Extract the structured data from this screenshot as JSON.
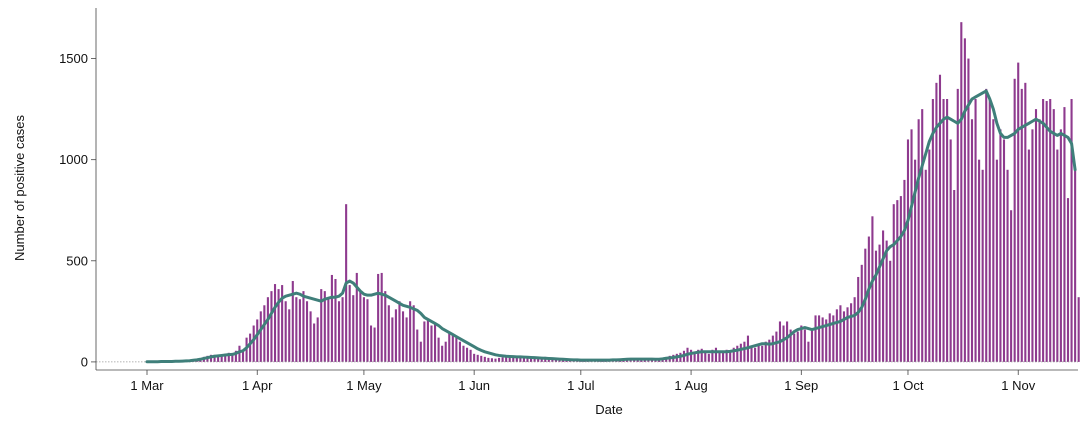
{
  "chart_data": {
    "type": "bar",
    "title": "",
    "xlabel": "Date",
    "ylabel": "Number of positive cases",
    "ylim": [
      -40,
      1750
    ],
    "grid": false,
    "x_ticks": [
      {
        "label": "1 Mar",
        "day": 0
      },
      {
        "label": "1 Apr",
        "day": 31
      },
      {
        "label": "1 May",
        "day": 61
      },
      {
        "label": "1 Jun",
        "day": 92
      },
      {
        "label": "1 Jul",
        "day": 122
      },
      {
        "label": "1 Aug",
        "day": 153
      },
      {
        "label": "1 Sep",
        "day": 184
      },
      {
        "label": "1 Oct",
        "day": 214
      },
      {
        "label": "1 Nov",
        "day": 245
      }
    ],
    "y_ticks": [
      0,
      500,
      1000,
      1500
    ],
    "series": [
      {
        "kind": "bar",
        "color": "#8e3a8e",
        "values": [
          0,
          0,
          0,
          0,
          1,
          1,
          2,
          2,
          3,
          3,
          4,
          5,
          8,
          10,
          12,
          18,
          25,
          30,
          35,
          35,
          28,
          32,
          40,
          45,
          38,
          55,
          80,
          60,
          120,
          140,
          180,
          210,
          250,
          280,
          320,
          350,
          385,
          360,
          380,
          300,
          260,
          400,
          320,
          310,
          350,
          300,
          250,
          190,
          220,
          360,
          350,
          320,
          430,
          410,
          300,
          320,
          780,
          380,
          330,
          440,
          350,
          320,
          310,
          180,
          170,
          435,
          440,
          350,
          280,
          220,
          260,
          300,
          250,
          220,
          300,
          280,
          160,
          100,
          200,
          210,
          180,
          190,
          120,
          80,
          100,
          150,
          140,
          120,
          100,
          80,
          70,
          60,
          40,
          35,
          30,
          25,
          20,
          18,
          16,
          20,
          22,
          25,
          28,
          30,
          30,
          28,
          25,
          22,
          20,
          18,
          20,
          22,
          25,
          20,
          18,
          15,
          12,
          10,
          10,
          8,
          9,
          10,
          9,
          8,
          7,
          8,
          9,
          10,
          8,
          9,
          10,
          12,
          14,
          16,
          18,
          15,
          12,
          10,
          12,
          14,
          16,
          18,
          14,
          12,
          10,
          20,
          22,
          30,
          35,
          40,
          45,
          55,
          70,
          60,
          50,
          60,
          65,
          50,
          40,
          60,
          70,
          50,
          50,
          60,
          50,
          70,
          80,
          90,
          100,
          130,
          80,
          70,
          90,
          80,
          100,
          110,
          130,
          150,
          200,
          180,
          200,
          160,
          140,
          150,
          180,
          160,
          100,
          160,
          230,
          230,
          220,
          210,
          240,
          230,
          260,
          280,
          250,
          270,
          290,
          320,
          420,
          480,
          560,
          620,
          720,
          550,
          580,
          650,
          600,
          500,
          780,
          800,
          820,
          900,
          1100,
          1150,
          1000,
          1200,
          1250,
          950,
          1050,
          1300,
          1380,
          1420,
          1300,
          1300,
          1100,
          850,
          1350,
          1680,
          1600,
          1500,
          1200,
          1300,
          1000,
          950,
          1350,
          1300,
          1200,
          1000,
          1150,
          1100,
          950,
          750,
          1400,
          1480,
          1350,
          1380,
          1050,
          1150,
          1250,
          1200,
          1300,
          1290,
          1300,
          1250,
          1050,
          1150,
          1260,
          810,
          1300,
          950,
          320
        ]
      },
      {
        "kind": "line",
        "color": "#3f7f7a",
        "values": [
          1,
          1,
          1,
          1,
          2,
          2,
          2,
          2,
          3,
          3,
          4,
          5,
          6,
          8,
          10,
          13,
          17,
          21,
          25,
          28,
          30,
          32,
          34,
          36,
          37,
          42,
          50,
          55,
          70,
          90,
          110,
          135,
          160,
          185,
          210,
          240,
          270,
          295,
          315,
          325,
          330,
          335,
          340,
          335,
          325,
          320,
          315,
          310,
          305,
          300,
          310,
          315,
          320,
          320,
          325,
          340,
          390,
          400,
          390,
          370,
          350,
          335,
          330,
          330,
          335,
          340,
          335,
          330,
          320,
          310,
          300,
          290,
          280,
          275,
          270,
          262,
          255,
          240,
          220,
          210,
          200,
          190,
          180,
          165,
          155,
          145,
          135,
          125,
          115,
          105,
          95,
          85,
          75,
          65,
          57,
          50,
          45,
          40,
          35,
          32,
          30,
          28,
          27,
          26,
          25,
          25,
          24,
          23,
          22,
          21,
          20,
          19,
          18,
          17,
          16,
          15,
          14,
          13,
          12,
          11,
          10,
          10,
          9,
          9,
          9,
          9,
          9,
          9,
          9,
          9,
          9,
          10,
          10,
          11,
          12,
          13,
          14,
          14,
          14,
          14,
          14,
          14,
          14,
          13,
          13,
          15,
          18,
          20,
          22,
          25,
          28,
          32,
          38,
          42,
          45,
          48,
          50,
          50,
          50,
          50,
          50,
          50,
          50,
          50,
          52,
          55,
          58,
          62,
          66,
          70,
          75,
          80,
          85,
          90,
          90,
          88,
          90,
          95,
          100,
          110,
          120,
          135,
          150,
          160,
          165,
          170,
          165,
          160,
          165,
          170,
          175,
          180,
          185,
          190,
          195,
          200,
          210,
          220,
          225,
          230,
          245,
          270,
          310,
          360,
          400,
          430,
          470,
          510,
          550,
          570,
          580,
          600,
          620,
          650,
          700,
          770,
          840,
          910,
          970,
          1030,
          1090,
          1130,
          1160,
          1180,
          1200,
          1210,
          1200,
          1190,
          1180,
          1200,
          1240,
          1270,
          1300,
          1310,
          1320,
          1330,
          1340,
          1300,
          1250,
          1180,
          1130,
          1110,
          1110,
          1120,
          1130,
          1150,
          1160,
          1170,
          1180,
          1190,
          1200,
          1190,
          1180,
          1160,
          1140,
          1130,
          1120,
          1130,
          1120,
          1110,
          1080,
          950
        ]
      }
    ]
  }
}
